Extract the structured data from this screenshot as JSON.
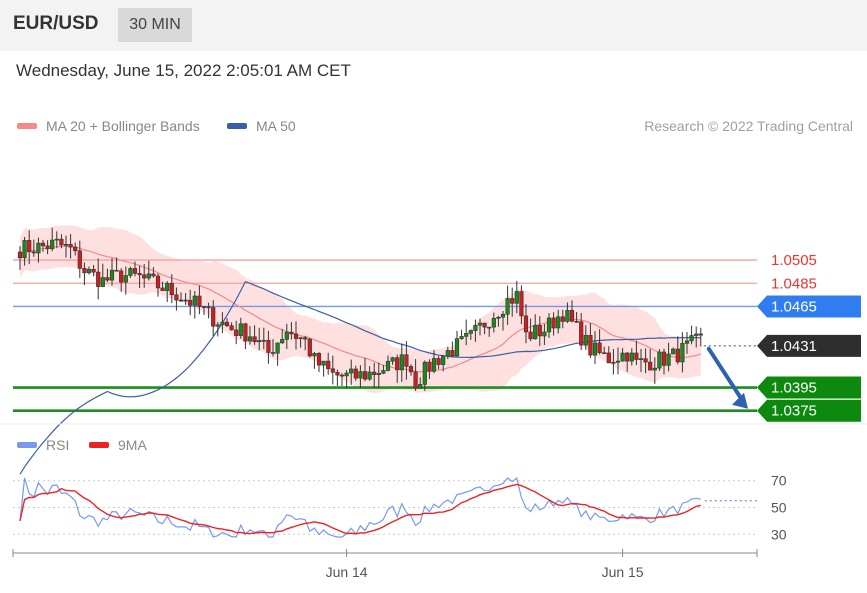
{
  "header": {
    "symbol": "EUR/USD",
    "timeframe": "30 MIN"
  },
  "datetime": "Wednesday, June 15, 2022 2:05:01 AM CET",
  "credit": "Research © 2022 Trading Central",
  "colors": {
    "resistance": "#ee3333",
    "ma50": "#4a7fe0",
    "support": "#118811",
    "last": "#333333",
    "bollinger": "#ffd5d5",
    "candle_up": "#1a8a1a",
    "candle_down": "#cc1f1f",
    "rsi": "#7799ee",
    "rsi_ma": "#ee2222"
  },
  "chart_data": [
    {
      "type": "candlestick",
      "legend": [
        {
          "name": "MA 20 + Bollinger Bands",
          "color": "#f48a8a"
        },
        {
          "name": "MA 50",
          "color": "#3a5fa5"
        }
      ],
      "legend_position": "top-left",
      "ylim": [
        1.0367,
        1.06
      ],
      "x_ticks": [
        {
          "label": "Jun 14",
          "index": 71
        },
        {
          "label": "Jun 15",
          "index": 131
        }
      ],
      "levels": [
        {
          "name": "resistance-2",
          "value": 1.0505,
          "label": "1.0505",
          "style": "resistance"
        },
        {
          "name": "resistance-1",
          "value": 1.0485,
          "label": "1.0485",
          "style": "resistance"
        },
        {
          "name": "pivot",
          "value": 1.0465,
          "label": "1.0465",
          "style": "pivot"
        },
        {
          "name": "last-price",
          "value": 1.0431,
          "label": "1.0431",
          "style": "last"
        },
        {
          "name": "support-1",
          "value": 1.0395,
          "label": "1.0395",
          "style": "support"
        },
        {
          "name": "support-2",
          "value": 1.0375,
          "label": "1.0375",
          "style": "support"
        }
      ],
      "forecast_arrow": {
        "from": 1.0431,
        "to": 1.0375
      },
      "anchors": [
        [
          0,
          1.0515
        ],
        [
          4,
          1.0516
        ],
        [
          8,
          1.0519
        ],
        [
          11,
          1.0514
        ],
        [
          14,
          1.0496
        ],
        [
          18,
          1.0487
        ],
        [
          22,
          1.0492
        ],
        [
          26,
          1.049
        ],
        [
          30,
          1.0483
        ],
        [
          34,
          1.0476
        ],
        [
          38,
          1.0467
        ],
        [
          42,
          1.0455
        ],
        [
          46,
          1.0446
        ],
        [
          50,
          1.0441
        ],
        [
          54,
          1.0425
        ],
        [
          58,
          1.0445
        ],
        [
          62,
          1.0435
        ],
        [
          64,
          1.0418
        ],
        [
          68,
          1.0406
        ],
        [
          72,
          1.0404
        ],
        [
          76,
          1.0407
        ],
        [
          80,
          1.0413
        ],
        [
          84,
          1.042
        ],
        [
          86,
          1.04
        ],
        [
          90,
          1.0418
        ],
        [
          94,
          1.0428
        ],
        [
          98,
          1.0438
        ],
        [
          102,
          1.0455
        ],
        [
          106,
          1.047
        ],
        [
          108,
          1.0474
        ],
        [
          110,
          1.044
        ],
        [
          114,
          1.0445
        ],
        [
          118,
          1.046
        ],
        [
          121,
          1.0445
        ],
        [
          124,
          1.0428
        ],
        [
          128,
          1.042
        ],
        [
          132,
          1.0425
        ],
        [
          134,
          1.0416
        ],
        [
          138,
          1.0418
        ],
        [
          142,
          1.0422
        ],
        [
          146,
          1.0432
        ],
        [
          148,
          1.0436
        ]
      ]
    },
    {
      "type": "line",
      "series": [
        {
          "name": "RSI",
          "color": "#7799ee"
        },
        {
          "name": "9MA",
          "color": "#ee2222"
        }
      ],
      "legend_position": "top-left",
      "ylim": [
        22,
        78
      ],
      "y_ticks": [
        70,
        50,
        30
      ],
      "last_value": 55
    }
  ]
}
